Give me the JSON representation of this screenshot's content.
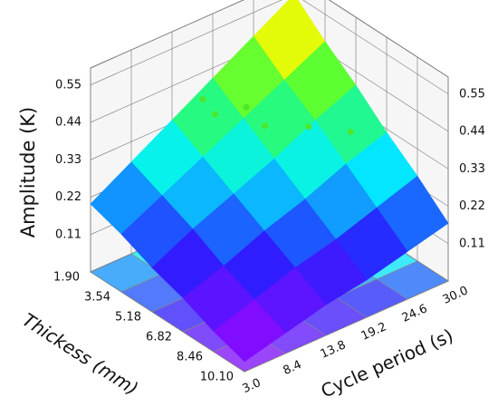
{
  "chart_data": {
    "type": "surface",
    "x_label": "Cycle period (s)",
    "y_label": "Thickess (mm)",
    "z_label": "Amplitude (K)",
    "x": [
      3,
      8.4,
      13.8,
      19.2,
      24.6,
      30
    ],
    "y": [
      1.9,
      3.54,
      5.18,
      6.82,
      8.46,
      10.1
    ],
    "z": [
      [
        0.2,
        0.27,
        0.34,
        0.41,
        0.48,
        0.55
      ],
      [
        0.17,
        0.23,
        0.29,
        0.35,
        0.41,
        0.47
      ],
      [
        0.13,
        0.19,
        0.24,
        0.29,
        0.35,
        0.4
      ],
      [
        0.1,
        0.14,
        0.19,
        0.23,
        0.28,
        0.32
      ],
      [
        0.06,
        0.1,
        0.14,
        0.17,
        0.21,
        0.25
      ],
      [
        0.03,
        0.06,
        0.09,
        0.11,
        0.14,
        0.17
      ]
    ],
    "xlim": [
      3,
      30
    ],
    "ylim": [
      1.9,
      10.1
    ],
    "zlim": [
      0,
      0.6
    ],
    "xticks": [
      {
        "value": 3,
        "label": "3.0"
      },
      8.4,
      13.8,
      19.2,
      24.6,
      {
        "value": 30,
        "label": "30.0"
      }
    ],
    "yticks": [
      {
        "value": 1.9,
        "label": "1.90"
      },
      3.54,
      5.18,
      6.82,
      8.46,
      {
        "value": 10.1,
        "label": "10.10"
      }
    ],
    "zticks": [
      0.11,
      0.22,
      0.33,
      0.44,
      0.55
    ],
    "points": {
      "color": "#4ee62a",
      "x": [
        13.8,
        15.4,
        21.6,
        20.0,
        25.8,
        29.3
      ],
      "y": [
        3.54,
        3.54,
        2.72,
        4.36,
        4.36,
        5.18
      ],
      "z": [
        0.46,
        0.4,
        0.33,
        0.35,
        0.29,
        0.27
      ]
    }
  }
}
